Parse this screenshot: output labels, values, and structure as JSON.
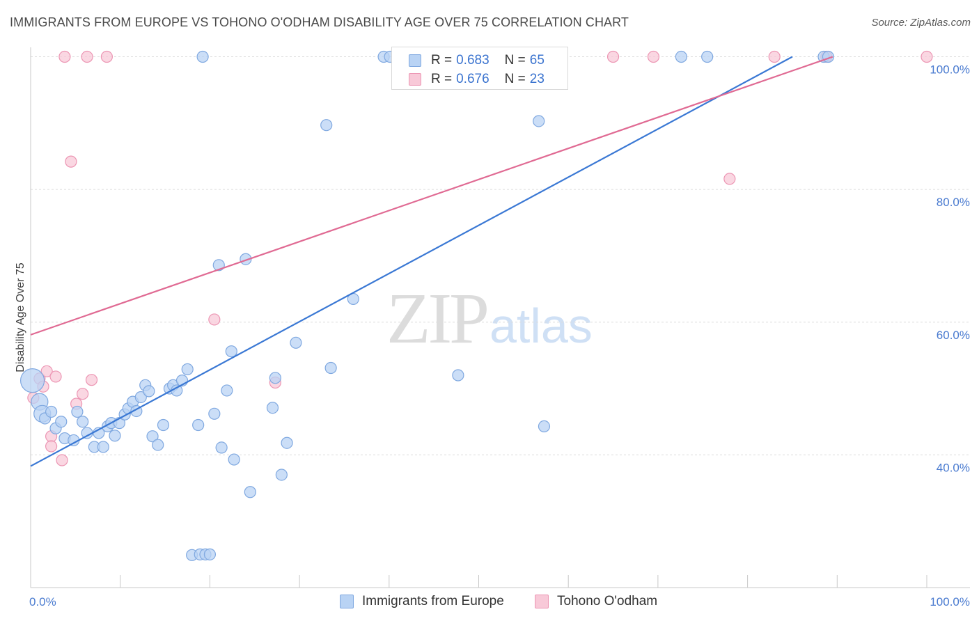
{
  "title": "IMMIGRANTS FROM EUROPE VS TOHONO O'ODHAM DISABILITY AGE OVER 75 CORRELATION CHART",
  "source": "Source: ZipAtlas.com",
  "watermark": {
    "zip": "ZIP",
    "atlas": "atlas"
  },
  "colors": {
    "blue_fill": "#b9d3f4",
    "blue_stroke": "#7fa8e0",
    "blue_line": "#3a78d4",
    "pink_fill": "#f8c9d8",
    "pink_stroke": "#ec95b3",
    "pink_line": "#e06a93",
    "tick_text": "#4a7bd0"
  },
  "legend": {
    "rows": [
      {
        "r_label": "R =",
        "r_value": "0.683",
        "n_label": "N =",
        "n_value": "65"
      },
      {
        "r_label": "R =",
        "r_value": "0.676",
        "n_label": "N =",
        "n_value": "23"
      }
    ]
  },
  "bottom_legend": {
    "series1": "Immigrants from Europe",
    "series2": "Tohono O'odham"
  },
  "chart_data": {
    "type": "scatter",
    "title": "IMMIGRANTS FROM EUROPE VS TOHONO O'ODHAM DISABILITY AGE OVER 75 CORRELATION CHART",
    "xlabel": "",
    "ylabel": "Disability Age Over 75",
    "xlim": [
      0,
      100
    ],
    "ylim": [
      20,
      101
    ],
    "x_tick_labels": [
      {
        "value": 0,
        "label": "0.0%"
      },
      {
        "value": 100,
        "label": "100.0%"
      }
    ],
    "y_ticks": [
      {
        "value": 40,
        "label": "40.0%"
      },
      {
        "value": 60,
        "label": "60.0%"
      },
      {
        "value": 80,
        "label": "80.0%"
      },
      {
        "value": 100,
        "label": "100.0%"
      }
    ],
    "grid": true,
    "series": [
      {
        "name": "Immigrants from Europe",
        "color": "#7fa8e0",
        "points": [
          [
            0.2,
            51.2
          ],
          [
            1.0,
            48.0
          ],
          [
            1.3,
            46.2
          ],
          [
            1.6,
            45.5
          ],
          [
            2.3,
            46.5
          ],
          [
            2.8,
            44.0
          ],
          [
            3.4,
            45.0
          ],
          [
            3.8,
            42.5
          ],
          [
            4.8,
            42.2
          ],
          [
            5.2,
            46.5
          ],
          [
            5.8,
            45.0
          ],
          [
            6.3,
            43.3
          ],
          [
            7.1,
            41.2
          ],
          [
            7.6,
            43.3
          ],
          [
            8.1,
            41.2
          ],
          [
            8.6,
            44.3
          ],
          [
            9.0,
            44.8
          ],
          [
            9.4,
            42.9
          ],
          [
            9.9,
            44.8
          ],
          [
            10.5,
            46.1
          ],
          [
            10.9,
            47.0
          ],
          [
            11.4,
            48.0
          ],
          [
            11.8,
            46.6
          ],
          [
            12.3,
            48.7
          ],
          [
            12.8,
            50.5
          ],
          [
            13.2,
            49.6
          ],
          [
            13.6,
            42.8
          ],
          [
            14.2,
            41.5
          ],
          [
            14.8,
            44.5
          ],
          [
            15.5,
            50.0
          ],
          [
            15.9,
            50.5
          ],
          [
            16.3,
            49.7
          ],
          [
            16.9,
            51.2
          ],
          [
            17.5,
            52.9
          ],
          [
            18.0,
            24.9
          ],
          [
            18.7,
            44.5
          ],
          [
            18.9,
            25.0
          ],
          [
            19.2,
            100.0
          ],
          [
            19.5,
            25.0
          ],
          [
            20.0,
            25.0
          ],
          [
            20.5,
            46.2
          ],
          [
            21.0,
            68.6
          ],
          [
            21.3,
            41.1
          ],
          [
            21.9,
            49.7
          ],
          [
            22.4,
            55.6
          ],
          [
            22.7,
            39.3
          ],
          [
            24.0,
            69.5
          ],
          [
            24.5,
            34.4
          ],
          [
            27.0,
            47.1
          ],
          [
            27.3,
            51.6
          ],
          [
            28.0,
            37.0
          ],
          [
            28.6,
            41.8
          ],
          [
            29.6,
            56.9
          ],
          [
            33.0,
            89.7
          ],
          [
            33.5,
            53.1
          ],
          [
            36.0,
            63.5
          ],
          [
            39.4,
            100.0
          ],
          [
            40.1,
            100.0
          ],
          [
            47.7,
            52.0
          ],
          [
            56.7,
            90.3
          ],
          [
            57.3,
            44.3
          ],
          [
            72.6,
            100.0
          ],
          [
            75.5,
            100.0
          ],
          [
            88.5,
            100.0
          ],
          [
            89.0,
            100.0
          ]
        ]
      },
      {
        "name": "Tohono O'odham",
        "color": "#ec95b3",
        "points": [
          [
            0.3,
            48.6
          ],
          [
            1.0,
            51.5
          ],
          [
            1.4,
            50.3
          ],
          [
            1.8,
            52.6
          ],
          [
            2.3,
            42.8
          ],
          [
            2.3,
            41.3
          ],
          [
            2.8,
            51.8
          ],
          [
            3.5,
            39.2
          ],
          [
            3.8,
            100.0
          ],
          [
            4.5,
            84.2
          ],
          [
            5.1,
            47.7
          ],
          [
            5.8,
            49.2
          ],
          [
            6.3,
            100.0
          ],
          [
            6.8,
            51.3
          ],
          [
            8.5,
            100.0
          ],
          [
            20.5,
            60.4
          ],
          [
            27.3,
            50.9
          ],
          [
            65.0,
            100.0
          ],
          [
            69.5,
            100.0
          ],
          [
            78.0,
            81.6
          ],
          [
            83.0,
            100.0
          ],
          [
            88.8,
            100.0
          ],
          [
            100.0,
            100.0
          ]
        ]
      }
    ],
    "trendlines": [
      {
        "series": "Immigrants from Europe",
        "x0": 0,
        "y0": 38.3,
        "x1": 85.0,
        "y1": 100.0
      },
      {
        "series": "Tohono O'odham",
        "x0": 0,
        "y0": 58.1,
        "x1": 89.5,
        "y1": 100.0
      }
    ]
  }
}
